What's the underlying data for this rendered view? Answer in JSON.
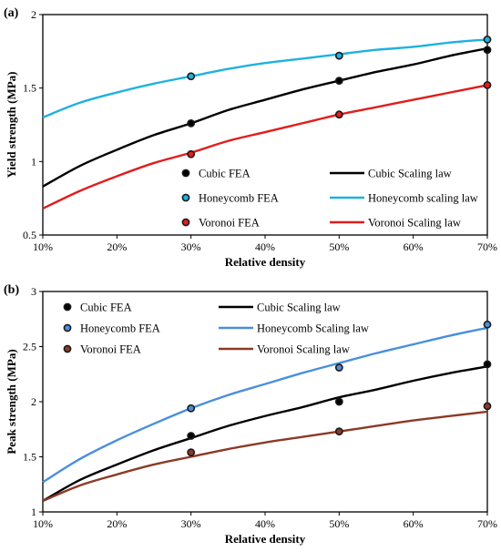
{
  "chart_data": [
    {
      "type": "line",
      "panel_label": "(a)",
      "xlabel": "Relative density",
      "ylabel": "Yield strength (MPa)",
      "xlim": [
        10,
        70
      ],
      "ylim": [
        0.5,
        2
      ],
      "x_ticks": [
        10,
        20,
        30,
        40,
        50,
        60,
        70
      ],
      "x_tick_labels": [
        "10%",
        "20%",
        "30%",
        "40%",
        "50%",
        "60%",
        "70%"
      ],
      "y_ticks": [
        0.5,
        1,
        1.5,
        2
      ],
      "y_tick_labels": [
        "0.5",
        "1",
        "1.5",
        "2"
      ],
      "grid": false,
      "legend_position": "bottom-right",
      "legend_columns": 2,
      "series": [
        {
          "name": "Cubic FEA",
          "kind": "scatter",
          "color": "#000000",
          "x": [
            30,
            50,
            70
          ],
          "y": [
            1.26,
            1.55,
            1.76
          ]
        },
        {
          "name": "Cubic Scaling law",
          "kind": "line",
          "color": "#000000",
          "x": [
            10,
            15,
            20,
            25,
            30,
            35,
            40,
            45,
            50,
            55,
            60,
            65,
            70
          ],
          "y": [
            0.83,
            0.97,
            1.08,
            1.18,
            1.26,
            1.35,
            1.42,
            1.49,
            1.55,
            1.61,
            1.66,
            1.72,
            1.77
          ]
        },
        {
          "name": "Honeycomb FEA",
          "kind": "scatter",
          "color": "#1fb1e0",
          "x": [
            30,
            50,
            70
          ],
          "y": [
            1.58,
            1.72,
            1.83
          ]
        },
        {
          "name": "Honeycomb scaling law",
          "kind": "line",
          "color": "#1fb1e0",
          "x": [
            10,
            15,
            20,
            25,
            30,
            35,
            40,
            45,
            50,
            55,
            60,
            65,
            70
          ],
          "y": [
            1.3,
            1.4,
            1.47,
            1.53,
            1.58,
            1.63,
            1.67,
            1.7,
            1.73,
            1.76,
            1.78,
            1.81,
            1.83
          ]
        },
        {
          "name": "Voronoi FEA",
          "kind": "scatter",
          "color": "#e31c1c",
          "x": [
            30,
            50,
            70
          ],
          "y": [
            1.05,
            1.32,
            1.52
          ]
        },
        {
          "name": "Voronoi Scaling law",
          "kind": "line",
          "color": "#e31c1c",
          "x": [
            10,
            15,
            20,
            25,
            30,
            35,
            40,
            45,
            50,
            55,
            60,
            65,
            70
          ],
          "y": [
            0.68,
            0.8,
            0.9,
            0.99,
            1.06,
            1.14,
            1.2,
            1.26,
            1.32,
            1.37,
            1.42,
            1.47,
            1.52
          ]
        }
      ]
    },
    {
      "type": "line",
      "panel_label": "(b)",
      "xlabel": "Relative density",
      "ylabel": "Peak strength (MPa)",
      "xlim": [
        10,
        70
      ],
      "ylim": [
        1,
        3
      ],
      "x_ticks": [
        10,
        20,
        30,
        40,
        50,
        60,
        70
      ],
      "x_tick_labels": [
        "10%",
        "20%",
        "30%",
        "40%",
        "50%",
        "60%",
        "70%"
      ],
      "y_ticks": [
        1,
        1.5,
        2,
        2.5,
        3
      ],
      "y_tick_labels": [
        "1",
        "1.5",
        "2",
        "2.5",
        "3"
      ],
      "grid": false,
      "legend_position": "top-left",
      "legend_columns": 2,
      "series": [
        {
          "name": "Cubic FEA",
          "kind": "scatter",
          "color": "#000000",
          "x": [
            30,
            50,
            70
          ],
          "y": [
            1.69,
            2.0,
            2.34
          ]
        },
        {
          "name": "Cubic Scaling law",
          "kind": "line",
          "color": "#000000",
          "x": [
            10,
            15,
            20,
            25,
            30,
            35,
            40,
            45,
            50,
            55,
            60,
            65,
            70
          ],
          "y": [
            1.1,
            1.29,
            1.43,
            1.56,
            1.67,
            1.78,
            1.87,
            1.95,
            2.04,
            2.11,
            2.19,
            2.26,
            2.32
          ]
        },
        {
          "name": "Honeycomb FEA",
          "kind": "scatter",
          "color": "#4a8fdc",
          "x": [
            30,
            50,
            70
          ],
          "y": [
            1.94,
            2.31,
            2.7
          ]
        },
        {
          "name": "Honeycomb Scaling law",
          "kind": "line",
          "color": "#4a8fdc",
          "x": [
            10,
            15,
            20,
            25,
            30,
            35,
            40,
            45,
            50,
            55,
            60,
            65,
            70
          ],
          "y": [
            1.27,
            1.48,
            1.65,
            1.8,
            1.94,
            2.06,
            2.16,
            2.26,
            2.35,
            2.44,
            2.52,
            2.6,
            2.67
          ]
        },
        {
          "name": "Voronoi FEA",
          "kind": "scatter",
          "color": "#8b3a26",
          "x": [
            30,
            50,
            70
          ],
          "y": [
            1.54,
            1.73,
            1.96
          ]
        },
        {
          "name": "Voronoi Scaling law",
          "kind": "line",
          "color": "#8b3a26",
          "x": [
            10,
            15,
            20,
            25,
            30,
            35,
            40,
            45,
            50,
            55,
            60,
            65,
            70
          ],
          "y": [
            1.1,
            1.24,
            1.34,
            1.43,
            1.5,
            1.57,
            1.63,
            1.68,
            1.73,
            1.78,
            1.83,
            1.87,
            1.91
          ]
        }
      ]
    }
  ]
}
